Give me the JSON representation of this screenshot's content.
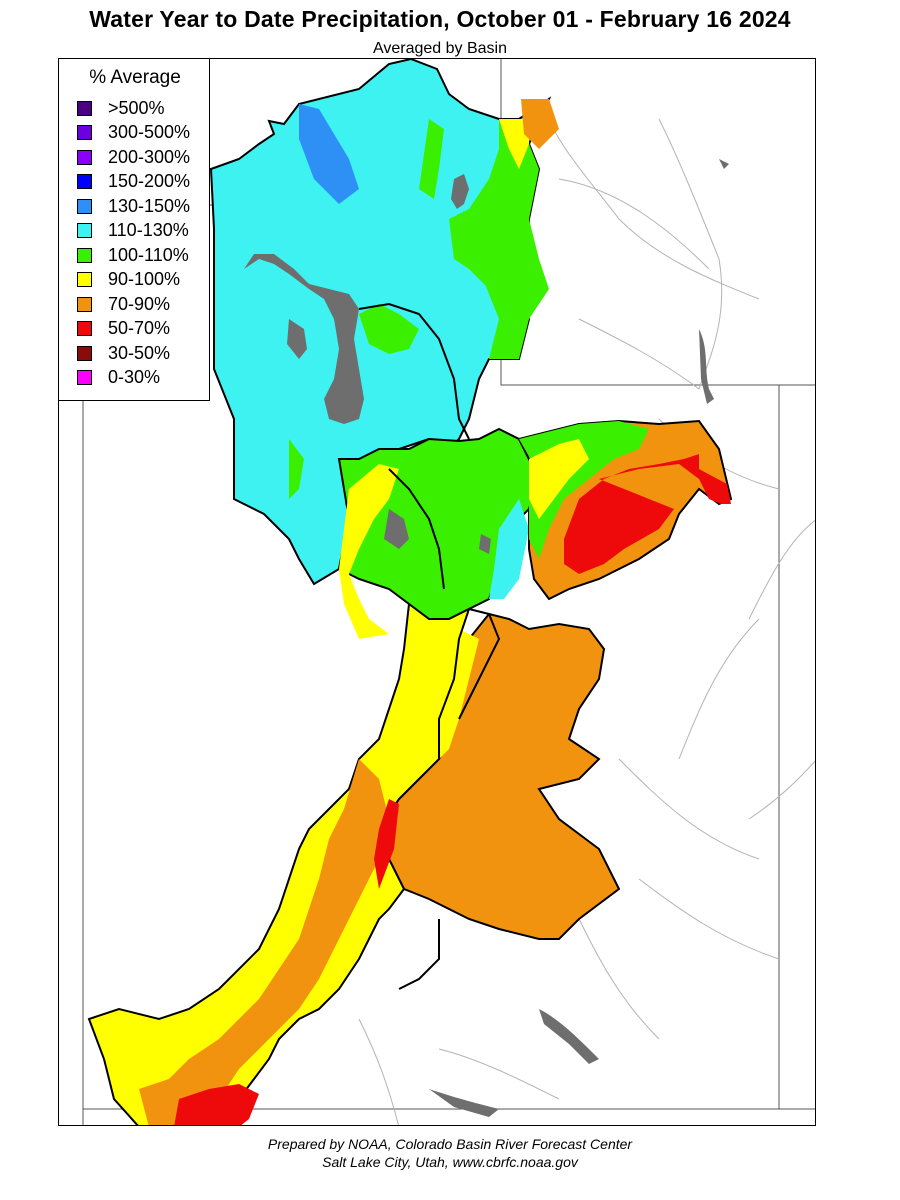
{
  "header": {
    "title": "Water Year to Date Precipitation, October 01  - February 16 2024",
    "subtitle": "Averaged by Basin"
  },
  "legend": {
    "title": "% Average",
    "items": [
      {
        "label": ">500%",
        "color": "#4b0082"
      },
      {
        "label": "300-500%",
        "color": "#6a00e0"
      },
      {
        "label": "200-300%",
        "color": "#8a00ff"
      },
      {
        "label": "150-200%",
        "color": "#0000ff"
      },
      {
        "label": "130-150%",
        "color": "#2e8ff5"
      },
      {
        "label": "110-130%",
        "color": "#3ef2f2"
      },
      {
        "label": "100-110%",
        "color": "#3af000"
      },
      {
        "label": "90-100%",
        "color": "#ffff00"
      },
      {
        "label": "70-90%",
        "color": "#f29310"
      },
      {
        "label": "50-70%",
        "color": "#ee0a0a"
      },
      {
        "label": "30-50%",
        "color": "#8b0a0a"
      },
      {
        "label": "0-30%",
        "color": "#ff00ff"
      }
    ]
  },
  "map": {
    "lake_color": "#6e6e6e",
    "basin_outline_color": "#000000",
    "river_color": "#9a9a9a"
  },
  "footer": {
    "line1": "Prepared by NOAA, Colorado Basin River Forecast Center",
    "line2": "Salt Lake City, Utah, www.cbrfc.noaa.gov"
  }
}
